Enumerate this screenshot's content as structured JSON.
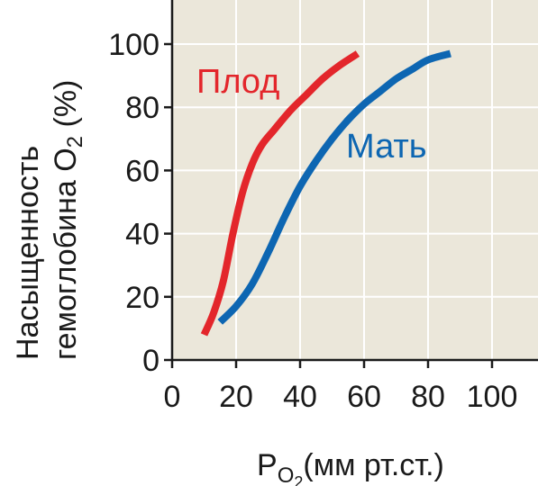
{
  "chart_data": {
    "type": "line",
    "title": "",
    "xlabel": {
      "main": "P",
      "sub": "O",
      "subsub": "2",
      "rest": "(мм рт.ст.)"
    },
    "ylabel": {
      "line1": "Насыщенность",
      "line2_main": "гемоглобина O",
      "line2_sub": "2",
      "line2_rest": " (%)"
    },
    "xlim": [
      0,
      100
    ],
    "ylim": [
      0,
      100
    ],
    "xticks": [
      "0",
      "20",
      "40",
      "60",
      "80",
      "100"
    ],
    "yticks": [
      "0",
      "20",
      "40",
      "60",
      "80",
      "100"
    ],
    "grid": true,
    "colors": {
      "background": "#ebe7da",
      "grid": "#ffffff",
      "axis": "#1a1a1a"
    },
    "series": [
      {
        "name": "Плод",
        "color": "#e3262b",
        "points": [
          [
            10,
            8
          ],
          [
            13,
            15
          ],
          [
            16,
            25
          ],
          [
            19,
            40
          ],
          [
            22,
            53
          ],
          [
            25,
            62
          ],
          [
            28,
            68
          ],
          [
            32,
            73
          ],
          [
            37,
            79
          ],
          [
            42,
            84
          ],
          [
            47,
            89
          ],
          [
            52,
            93
          ],
          [
            58,
            97
          ]
        ]
      },
      {
        "name": "Мать",
        "color": "#0d66b2",
        "points": [
          [
            15,
            12
          ],
          [
            20,
            17
          ],
          [
            25,
            24
          ],
          [
            30,
            34
          ],
          [
            35,
            45
          ],
          [
            40,
            55
          ],
          [
            45,
            63
          ],
          [
            50,
            70
          ],
          [
            55,
            76
          ],
          [
            60,
            81
          ],
          [
            65,
            85
          ],
          [
            70,
            89
          ],
          [
            75,
            92
          ],
          [
            80,
            95
          ],
          [
            87,
            97
          ]
        ]
      }
    ]
  }
}
